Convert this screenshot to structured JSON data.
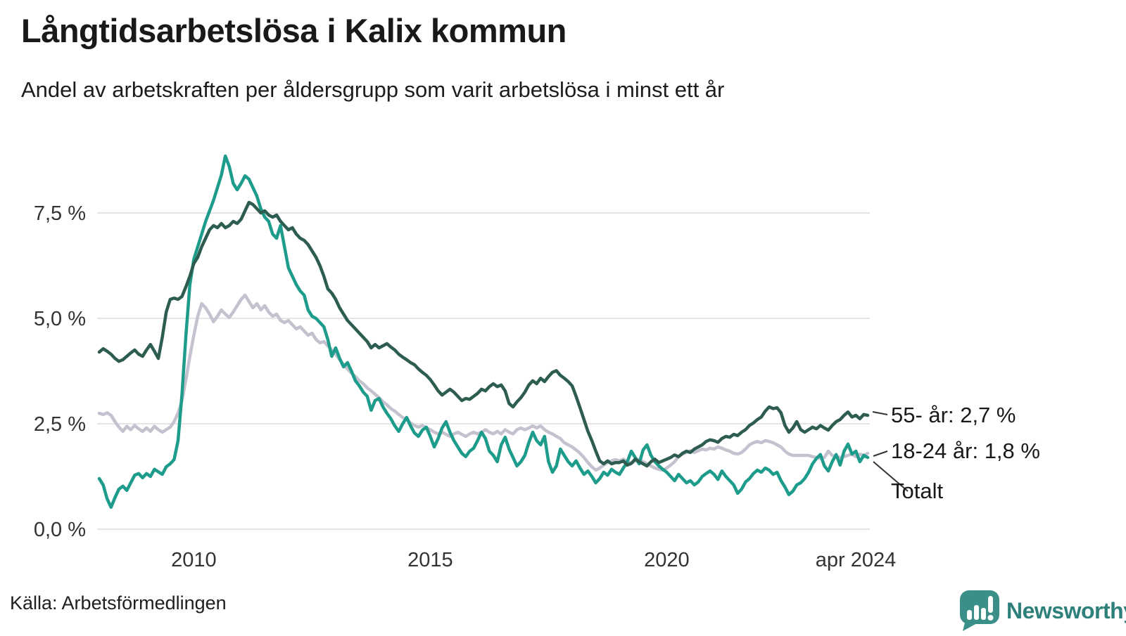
{
  "header": {
    "title": "Långtidsarbetslösa i Kalix kommun",
    "subtitle": "Andel av arbetskraften per åldersgrupp som varit arbetslösa i minst ett år"
  },
  "footer": {
    "source": "Källa: Arbetsförmedlingen",
    "logo_text": "Newsworthy"
  },
  "colors": {
    "series_55": "#2d5c50",
    "series_18_24": "#c4c2ce",
    "series_total": "#1e9c8b",
    "grid": "#e5e5e8",
    "text": "#191919",
    "logo_bubble": "#3a9089",
    "logo_text": "#2e807b"
  },
  "chart_data": {
    "type": "line",
    "title": "Långtidsarbetslösa i Kalix kommun",
    "subtitle": "Andel av arbetskraften per åldersgrupp som varit arbetslösa i minst ett år",
    "x_start": "2008-01",
    "x_end": "2024-04",
    "x_interval": "monthly",
    "ylabel": "",
    "ylim": [
      0,
      9.2
    ],
    "grid": "horizontal",
    "legend_position": "end-of-line-labels",
    "y_ticks": [
      {
        "v": 0,
        "label": "0,0 %"
      },
      {
        "v": 2.5,
        "label": "2,5 %"
      },
      {
        "v": 5,
        "label": "5,0 %"
      },
      {
        "v": 7.5,
        "label": "7,5 %"
      }
    ],
    "x_ticks": [
      {
        "m": 24,
        "label": "2010"
      },
      {
        "m": 84,
        "label": "2015"
      },
      {
        "m": 144,
        "label": "2020"
      },
      {
        "m": 195,
        "label": "apr 2024"
      }
    ],
    "series": [
      {
        "id": "55-ar",
        "name": "55- år",
        "color": "#2d5c50",
        "end_label": "55- år: 2,7 %",
        "end_value": 2.7,
        "values": [
          4.2,
          4.28,
          4.22,
          4.15,
          4.05,
          3.98,
          4.02,
          4.1,
          4.18,
          4.25,
          4.15,
          4.1,
          4.25,
          4.38,
          4.22,
          4.05,
          4.55,
          5.15,
          5.45,
          5.48,
          5.45,
          5.52,
          5.75,
          6.0,
          6.3,
          6.45,
          6.7,
          6.9,
          7.1,
          7.2,
          7.15,
          7.25,
          7.15,
          7.2,
          7.3,
          7.25,
          7.35,
          7.55,
          7.75,
          7.7,
          7.6,
          7.5,
          7.55,
          7.45,
          7.4,
          7.45,
          7.3,
          7.2,
          7.1,
          7.15,
          7.0,
          6.9,
          6.85,
          6.75,
          6.6,
          6.45,
          6.25,
          6.0,
          5.7,
          5.6,
          5.45,
          5.25,
          5.1,
          4.95,
          4.85,
          4.75,
          4.65,
          4.55,
          4.45,
          4.3,
          4.38,
          4.3,
          4.35,
          4.4,
          4.32,
          4.25,
          4.15,
          4.08,
          4.02,
          3.95,
          3.9,
          3.8,
          3.72,
          3.65,
          3.55,
          3.42,
          3.28,
          3.18,
          3.25,
          3.32,
          3.25,
          3.15,
          3.05,
          3.1,
          3.08,
          3.15,
          3.22,
          3.32,
          3.28,
          3.38,
          3.45,
          3.38,
          3.42,
          3.28,
          2.98,
          2.9,
          3.02,
          3.12,
          3.25,
          3.42,
          3.52,
          3.45,
          3.58,
          3.5,
          3.62,
          3.72,
          3.76,
          3.65,
          3.58,
          3.5,
          3.4,
          3.15,
          2.88,
          2.6,
          2.32,
          2.1,
          1.85,
          1.62,
          1.55,
          1.62,
          1.55,
          1.58,
          1.58,
          1.62,
          1.52,
          1.56,
          1.66,
          1.6,
          1.55,
          1.5,
          1.6,
          1.66,
          1.58,
          1.62,
          1.66,
          1.7,
          1.76,
          1.72,
          1.8,
          1.85,
          1.82,
          1.9,
          1.95,
          2.0,
          2.08,
          2.12,
          2.1,
          2.06,
          2.15,
          2.2,
          2.18,
          2.25,
          2.22,
          2.3,
          2.36,
          2.46,
          2.52,
          2.6,
          2.66,
          2.8,
          2.9,
          2.86,
          2.88,
          2.76,
          2.46,
          2.3,
          2.4,
          2.55,
          2.36,
          2.3,
          2.36,
          2.42,
          2.38,
          2.46,
          2.4,
          2.35,
          2.46,
          2.55,
          2.6,
          2.7,
          2.78,
          2.66,
          2.7,
          2.62,
          2.72,
          2.7
        ]
      },
      {
        "id": "18-24-ar",
        "name": "18-24 år",
        "color": "#c4c2ce",
        "end_label": "18-24 år: 1,8 %",
        "end_value": 1.8,
        "values": [
          2.75,
          2.72,
          2.76,
          2.7,
          2.55,
          2.42,
          2.32,
          2.44,
          2.36,
          2.46,
          2.38,
          2.32,
          2.4,
          2.32,
          2.44,
          2.36,
          2.3,
          2.36,
          2.42,
          2.55,
          2.75,
          3.05,
          3.55,
          4.1,
          4.6,
          5.05,
          5.35,
          5.25,
          5.1,
          4.92,
          5.05,
          5.2,
          5.1,
          5.02,
          5.15,
          5.3,
          5.45,
          5.55,
          5.4,
          5.25,
          5.35,
          5.2,
          5.3,
          5.15,
          5.05,
          5.1,
          4.95,
          4.9,
          4.95,
          4.85,
          4.75,
          4.8,
          4.7,
          4.6,
          4.65,
          4.5,
          4.42,
          4.45,
          4.35,
          4.25,
          4.15,
          4.02,
          3.9,
          3.8,
          3.7,
          3.62,
          3.52,
          3.45,
          3.35,
          3.28,
          3.2,
          3.12,
          3.02,
          2.95,
          2.86,
          2.8,
          2.72,
          2.65,
          2.6,
          2.52,
          2.46,
          2.42,
          2.46,
          2.4,
          2.36,
          2.3,
          2.26,
          2.3,
          2.25,
          2.2,
          2.26,
          2.3,
          2.25,
          2.2,
          2.26,
          2.3,
          2.26,
          2.3,
          2.36,
          2.3,
          2.26,
          2.32,
          2.26,
          2.36,
          2.3,
          2.26,
          2.36,
          2.4,
          2.36,
          2.4,
          2.45,
          2.4,
          2.45,
          2.36,
          2.3,
          2.26,
          2.2,
          2.15,
          2.05,
          2.0,
          1.95,
          1.88,
          1.8,
          1.7,
          1.58,
          1.48,
          1.4,
          1.45,
          1.52,
          1.58,
          1.62,
          1.65,
          1.62,
          1.66,
          1.6,
          1.56,
          1.62,
          1.66,
          1.6,
          1.55,
          1.5,
          1.45,
          1.42,
          1.4,
          1.45,
          1.52,
          1.6,
          1.72,
          1.78,
          1.82,
          1.86,
          1.82,
          1.86,
          1.9,
          1.88,
          1.92,
          1.9,
          1.95,
          1.92,
          1.88,
          1.85,
          1.8,
          1.78,
          1.82,
          1.9,
          2.0,
          2.05,
          2.08,
          2.05,
          2.1,
          2.08,
          2.05,
          2.0,
          1.95,
          1.85,
          1.78,
          1.75,
          1.75,
          1.75,
          1.75,
          1.75,
          1.72,
          1.7,
          1.68,
          1.7,
          1.85,
          1.75,
          1.72,
          1.7,
          1.72,
          1.75,
          1.78,
          1.72,
          1.78,
          1.75,
          1.8
        ]
      },
      {
        "id": "totalt",
        "name": "Totalt",
        "color": "#1e9c8b",
        "end_label": "Totalt",
        "end_value": 1.7,
        "values": [
          1.2,
          1.05,
          0.72,
          0.52,
          0.75,
          0.95,
          1.02,
          0.92,
          1.1,
          1.28,
          1.32,
          1.22,
          1.32,
          1.25,
          1.42,
          1.36,
          1.3,
          1.48,
          1.55,
          1.65,
          2.1,
          3.2,
          4.6,
          5.8,
          6.4,
          6.7,
          7.0,
          7.3,
          7.55,
          7.8,
          8.1,
          8.4,
          8.85,
          8.6,
          8.2,
          8.05,
          8.2,
          8.38,
          8.3,
          8.1,
          7.9,
          7.6,
          7.4,
          7.3,
          7.0,
          6.9,
          7.2,
          6.7,
          6.2,
          6.0,
          5.8,
          5.65,
          5.55,
          5.2,
          5.05,
          5.0,
          4.9,
          4.8,
          4.5,
          4.1,
          4.3,
          4.05,
          3.85,
          3.95,
          3.75,
          3.52,
          3.4,
          3.25,
          3.15,
          2.82,
          3.05,
          3.1,
          2.9,
          2.75,
          2.62,
          2.45,
          2.32,
          2.5,
          2.65,
          2.45,
          2.28,
          2.2,
          2.35,
          2.42,
          2.2,
          1.95,
          2.15,
          2.4,
          2.55,
          2.3,
          2.1,
          1.95,
          1.8,
          1.72,
          1.85,
          1.92,
          2.1,
          2.3,
          2.15,
          1.85,
          1.75,
          1.6,
          2.0,
          2.18,
          1.9,
          1.7,
          1.5,
          1.6,
          1.75,
          2.05,
          2.3,
          2.1,
          2.0,
          2.2,
          1.6,
          1.35,
          1.5,
          1.9,
          1.75,
          1.6,
          1.5,
          1.62,
          1.45,
          1.3,
          1.38,
          1.25,
          1.1,
          1.2,
          1.35,
          1.28,
          1.42,
          1.35,
          1.3,
          1.45,
          1.6,
          1.85,
          1.7,
          1.55,
          1.88,
          2.0,
          1.75,
          1.6,
          1.5,
          1.42,
          1.35,
          1.25,
          1.15,
          1.3,
          1.2,
          1.1,
          1.15,
          1.05,
          1.12,
          1.25,
          1.32,
          1.38,
          1.3,
          1.18,
          1.38,
          1.25,
          1.15,
          1.05,
          0.85,
          0.95,
          1.12,
          1.2,
          1.32,
          1.4,
          1.35,
          1.45,
          1.4,
          1.3,
          1.35,
          1.15,
          1.0,
          0.82,
          0.9,
          1.05,
          1.1,
          1.2,
          1.35,
          1.55,
          1.68,
          1.77,
          1.5,
          1.38,
          1.6,
          1.77,
          1.52,
          1.85,
          2.02,
          1.78,
          1.85,
          1.6,
          1.75,
          1.7
        ]
      }
    ]
  }
}
